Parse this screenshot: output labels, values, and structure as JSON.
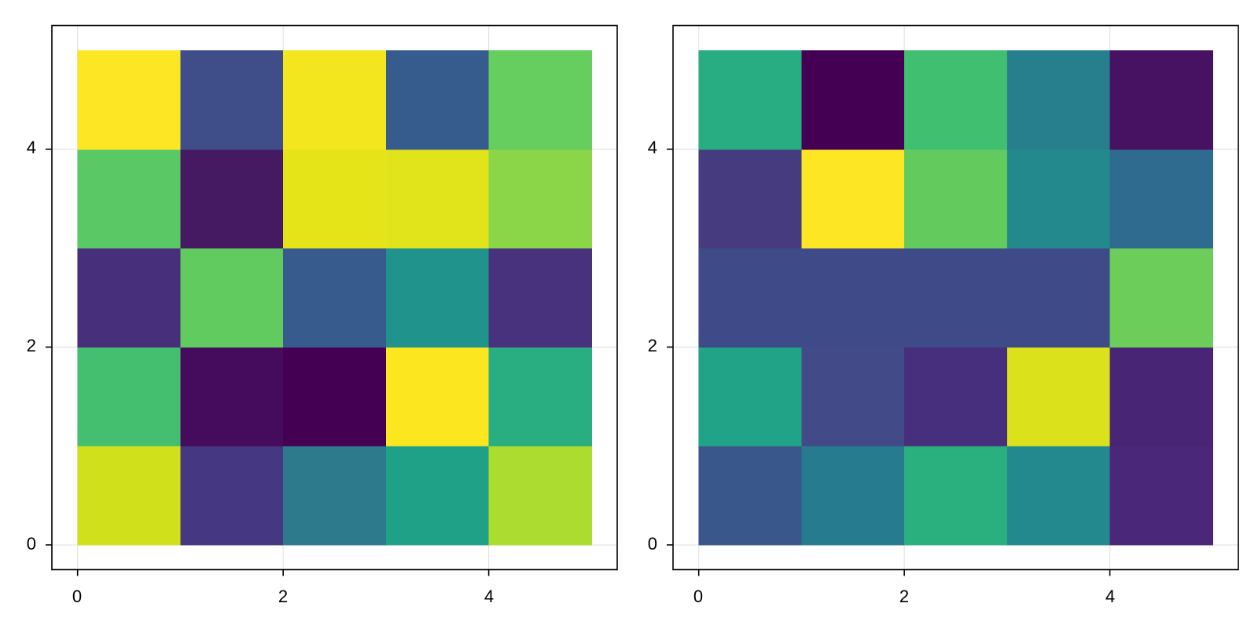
{
  "figure": {
    "background": "#ffffff",
    "colormap": "viridis"
  },
  "chart_data": [
    {
      "type": "heatmap",
      "title": "",
      "xlabel": "",
      "ylabel": "",
      "x_edges": [
        0,
        1,
        2,
        3,
        4,
        5
      ],
      "y_edges": [
        0,
        1,
        2,
        3,
        4,
        5
      ],
      "xlim": [
        -0.25,
        5.25
      ],
      "ylim": [
        -0.25,
        5.25
      ],
      "x_ticks": [
        0,
        2,
        4
      ],
      "y_ticks": [
        0,
        2,
        4
      ],
      "x_tick_labels": [
        "0",
        "2",
        "4"
      ],
      "y_tick_labels": [
        "0",
        "2",
        "4"
      ],
      "grid": true,
      "rows_from_bottom": [
        {
          "values": [
            0.9,
            0.19,
            0.38,
            0.54,
            0.85
          ],
          "colors": [
            "#d0e11c",
            "#453781",
            "#2c7a8b",
            "#1fa188",
            "#addc30"
          ]
        },
        {
          "values": [
            0.68,
            0.03,
            0.0,
            0.99,
            0.58
          ],
          "colors": [
            "#44bf70",
            "#450b5c",
            "#440154",
            "#fbe61f",
            "#28ae80"
          ]
        },
        {
          "values": [
            0.17,
            0.73,
            0.28,
            0.51,
            0.14
          ],
          "colors": [
            "#482f7b",
            "#62cb5f",
            "#375b8c",
            "#20938c",
            "#48317d"
          ]
        },
        {
          "values": [
            0.72,
            0.06,
            0.94,
            0.92,
            0.82
          ],
          "colors": [
            "#5ac865",
            "#461a62",
            "#e5e419",
            "#e1e31b",
            "#8ad548"
          ]
        },
        {
          "values": [
            0.99,
            0.24,
            0.97,
            0.29,
            0.73
          ],
          "colors": [
            "#fde725",
            "#3f4e89",
            "#f3e61e",
            "#365c8d",
            "#66cd5f"
          ]
        }
      ]
    },
    {
      "type": "heatmap",
      "title": "",
      "xlabel": "",
      "ylabel": "",
      "x_edges": [
        0,
        1,
        2,
        3,
        4,
        5
      ],
      "y_edges": [
        0,
        1,
        2,
        3,
        4,
        5
      ],
      "xlim": [
        -0.25,
        5.25
      ],
      "ylim": [
        -0.25,
        5.25
      ],
      "x_ticks": [
        0,
        2,
        4
      ],
      "y_ticks": [
        0,
        2,
        4
      ],
      "x_tick_labels": [
        "0",
        "2",
        "4"
      ],
      "y_tick_labels": [
        "0",
        "2",
        "4"
      ],
      "grid": true,
      "rows_from_bottom": [
        {
          "values": [
            0.27,
            0.43,
            0.62,
            0.47,
            0.13
          ],
          "colors": [
            "#3a578c",
            "#277b8e",
            "#2ab07f",
            "#23898e",
            "#4b277a"
          ]
        },
        {
          "values": [
            0.56,
            0.23,
            0.15,
            0.95,
            0.1
          ],
          "colors": [
            "#21a387",
            "#424a87",
            "#472f7d",
            "#dbe21c",
            "#482575"
          ]
        },
        {
          "values": [
            0.23,
            0.23,
            0.23,
            0.23,
            0.76
          ],
          "colors": [
            "#3f4b88",
            "#3f4b88",
            "#3f4b88",
            "#3f4b88",
            "#6ccd5a"
          ]
        },
        {
          "values": [
            0.15,
            1.0,
            0.73,
            0.49,
            0.36
          ],
          "colors": [
            "#463b7e",
            "#fde725",
            "#63ca5e",
            "#23898d",
            "#2f6b8e"
          ]
        },
        {
          "values": [
            0.6,
            0.0,
            0.68,
            0.44,
            0.05
          ],
          "colors": [
            "#27ad81",
            "#440154",
            "#40bf71",
            "#277f8e",
            "#481263"
          ]
        }
      ]
    }
  ]
}
